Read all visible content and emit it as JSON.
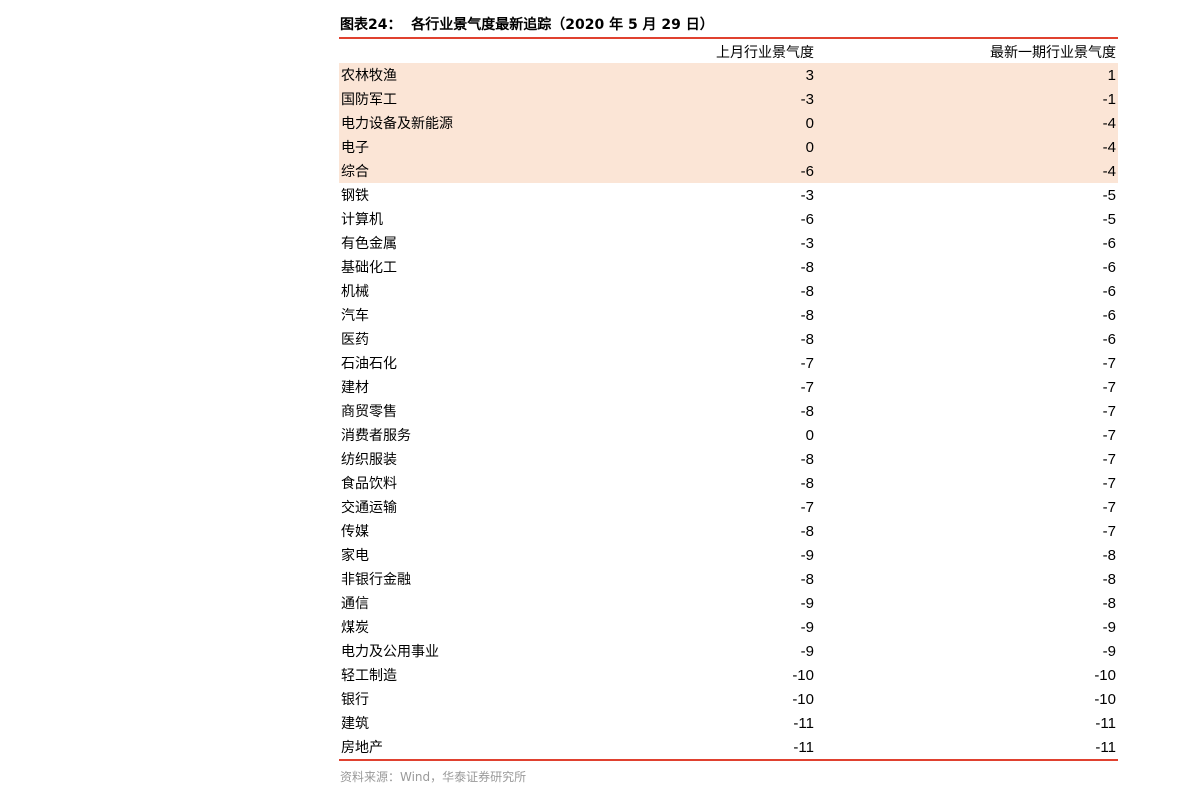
{
  "title": "图表24：  各行业景气度最新追踪（2020 年 5 月 29 日）",
  "columns": [
    "",
    "上月行业景气度",
    "最新一期行业景气度"
  ],
  "highlight_color": "#fbe5d6",
  "rule_color": "#e0412f",
  "rows": [
    {
      "industry": "农林牧渔",
      "last_month": "3",
      "latest": "1",
      "highlight": true
    },
    {
      "industry": "国防军工",
      "last_month": "-3",
      "latest": "-1",
      "highlight": true
    },
    {
      "industry": "电力设备及新能源",
      "last_month": "0",
      "latest": "-4",
      "highlight": true
    },
    {
      "industry": "电子",
      "last_month": "0",
      "latest": "-4",
      "highlight": true
    },
    {
      "industry": "综合",
      "last_month": "-6",
      "latest": "-4",
      "highlight": true
    },
    {
      "industry": "钢铁",
      "last_month": "-3",
      "latest": "-5"
    },
    {
      "industry": "计算机",
      "last_month": "-6",
      "latest": "-5"
    },
    {
      "industry": "有色金属",
      "last_month": "-3",
      "latest": "-6"
    },
    {
      "industry": "基础化工",
      "last_month": "-8",
      "latest": "-6"
    },
    {
      "industry": "机械",
      "last_month": "-8",
      "latest": "-6"
    },
    {
      "industry": "汽车",
      "last_month": "-8",
      "latest": "-6"
    },
    {
      "industry": "医药",
      "last_month": "-8",
      "latest": "-6"
    },
    {
      "industry": "石油石化",
      "last_month": "-7",
      "latest": "-7"
    },
    {
      "industry": "建材",
      "last_month": "-7",
      "latest": "-7"
    },
    {
      "industry": "商贸零售",
      "last_month": "-8",
      "latest": "-7"
    },
    {
      "industry": "消费者服务",
      "last_month": "0",
      "latest": "-7"
    },
    {
      "industry": "纺织服装",
      "last_month": "-8",
      "latest": "-7"
    },
    {
      "industry": "食品饮料",
      "last_month": "-8",
      "latest": "-7"
    },
    {
      "industry": "交通运输",
      "last_month": "-7",
      "latest": "-7"
    },
    {
      "industry": "传媒",
      "last_month": "-8",
      "latest": "-7"
    },
    {
      "industry": "家电",
      "last_month": "-9",
      "latest": "-8"
    },
    {
      "industry": "非银行金融",
      "last_month": "-8",
      "latest": "-8"
    },
    {
      "industry": "通信",
      "last_month": "-9",
      "latest": "-8"
    },
    {
      "industry": "煤炭",
      "last_month": "-9",
      "latest": "-9"
    },
    {
      "industry": "电力及公用事业",
      "last_month": "-9",
      "latest": "-9"
    },
    {
      "industry": "轻工制造",
      "last_month": "-10",
      "latest": "-10"
    },
    {
      "industry": "银行",
      "last_month": "-10",
      "latest": "-10"
    },
    {
      "industry": "建筑",
      "last_month": "-11",
      "latest": "-11"
    },
    {
      "industry": "房地产",
      "last_month": "-11",
      "latest": "-11"
    }
  ],
  "source": "资料来源：Wind，华泰证券研究所"
}
